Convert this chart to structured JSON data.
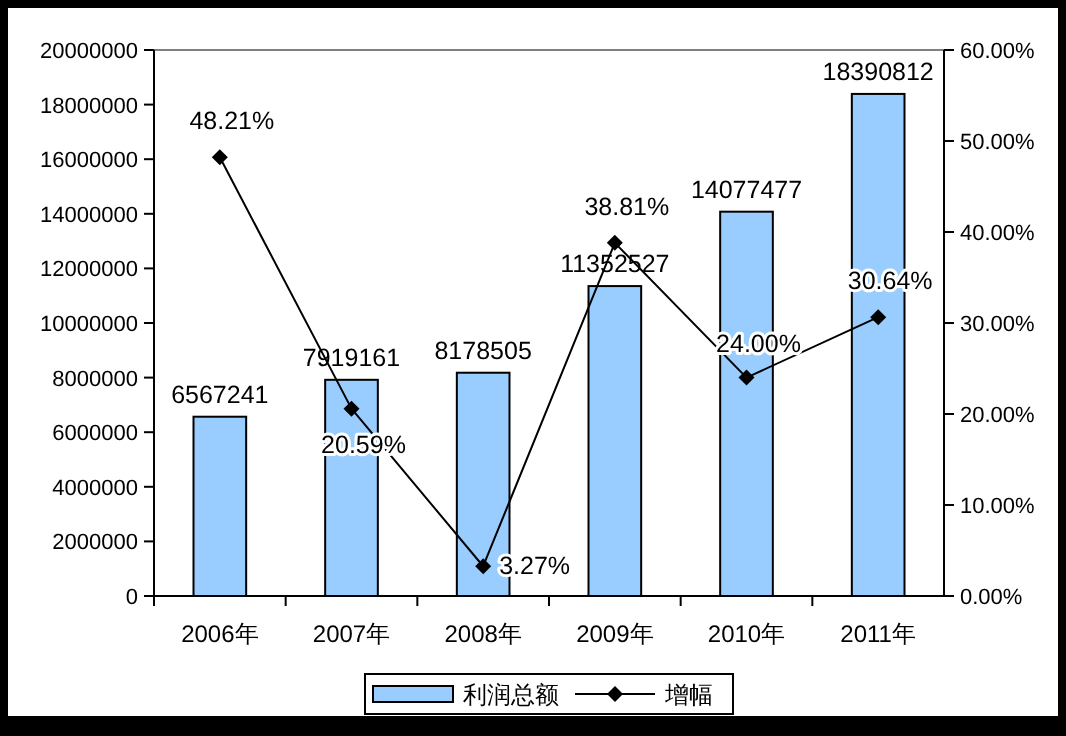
{
  "chart_data": {
    "type": "bar",
    "categories": [
      "2006年",
      "2007年",
      "2008年",
      "2009年",
      "2010年",
      "2011年"
    ],
    "series": [
      {
        "name": "利润总额",
        "color": "#99ccff",
        "values": [
          6567241,
          7919161,
          8178505,
          11352527,
          14077477,
          18390812
        ],
        "value_labels": [
          "6567241",
          "7919161",
          "8178505",
          "11352527",
          "14077477",
          "18390812"
        ]
      },
      {
        "name": "增幅",
        "type": "line",
        "axis": "y2",
        "color": "#000000",
        "marker": "diamond",
        "values": [
          48.21,
          20.59,
          3.27,
          38.81,
          24.0,
          30.64
        ],
        "value_labels": [
          "48.21%",
          "20.59%",
          "3.27%",
          "38.81%",
          "24.00%",
          "30.64%"
        ]
      }
    ],
    "ylim": [
      0,
      20000000
    ],
    "yticks": [
      0,
      2000000,
      4000000,
      6000000,
      8000000,
      10000000,
      12000000,
      14000000,
      16000000,
      18000000,
      20000000
    ],
    "y2lim": [
      0,
      60
    ],
    "y2ticks": [
      {
        "value": 0,
        "label": "0.00%"
      },
      {
        "value": 10,
        "label": "10.00%"
      },
      {
        "value": 20,
        "label": "20.00%"
      },
      {
        "value": 30,
        "label": "30.00%"
      },
      {
        "value": 40,
        "label": "40.00%"
      },
      {
        "value": 50,
        "label": "50.00%"
      },
      {
        "value": 60,
        "label": "60.00%"
      }
    ],
    "grid": false,
    "legend": "bottom"
  }
}
